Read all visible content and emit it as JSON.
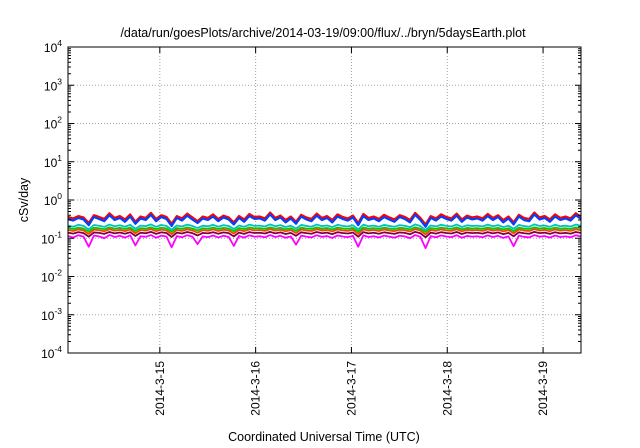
{
  "chart_data": {
    "type": "line",
    "title": "/data/run/goesPlots/archive/2014-03-19/09:00/flux/../bryn/5daysEarth.plot",
    "xlabel": "Coordinated Universal Time (UTC)",
    "ylabel": "cSv/day",
    "yscale": "log",
    "ylim": [
      0.0001,
      10000
    ],
    "yticks": [
      {
        "value": 0.0001,
        "base": "10",
        "exp": "-4"
      },
      {
        "value": 0.001,
        "base": "10",
        "exp": "-3"
      },
      {
        "value": 0.01,
        "base": "10",
        "exp": "-2"
      },
      {
        "value": 0.1,
        "base": "10",
        "exp": "-1"
      },
      {
        "value": 1,
        "base": "10",
        "exp": "0"
      },
      {
        "value": 10,
        "base": "10",
        "exp": "1"
      },
      {
        "value": 100,
        "base": "10",
        "exp": "2"
      },
      {
        "value": 1000,
        "base": "10",
        "exp": "3"
      },
      {
        "value": 10000,
        "base": "10",
        "exp": "4"
      }
    ],
    "xlim": [
      "2014-03-14T01:00",
      "2014-03-19T09:30"
    ],
    "xticks": [
      "2014-3-15",
      "2014-3-16",
      "2014-3-17",
      "2014-3-18",
      "2014-3-19"
    ],
    "grid": true,
    "series": [
      {
        "color": "#ff00ff",
        "values": [
          0.115,
          0.105,
          0.12,
          0.11,
          0.06,
          0.118,
          0.112,
          0.1,
          0.122,
          0.108,
          0.116,
          0.104,
          0.119,
          0.065,
          0.113,
          0.109,
          0.121,
          0.103,
          0.117,
          0.111,
          0.058,
          0.114,
          0.106,
          0.12,
          0.11,
          0.07,
          0.112,
          0.107,
          0.118,
          0.105,
          0.116,
          0.109,
          0.063,
          0.115,
          0.104,
          0.119,
          0.11,
          0.113,
          0.106,
          0.121,
          0.108,
          0.116,
          0.103,
          0.112,
          0.068,
          0.117,
          0.11,
          0.105,
          0.12,
          0.109,
          0.114,
          0.102,
          0.118,
          0.111,
          0.107,
          0.115,
          0.06,
          0.119,
          0.108,
          0.113,
          0.105,
          0.117,
          0.11,
          0.104,
          0.116,
          0.112,
          0.1,
          0.121,
          0.109,
          0.055,
          0.114,
          0.106,
          0.118,
          0.111,
          0.107,
          0.12,
          0.103,
          0.115,
          0.11,
          0.113,
          0.106,
          0.119,
          0.108,
          0.116,
          0.102,
          0.112,
          0.062,
          0.117,
          0.109,
          0.105,
          0.121,
          0.11,
          0.114,
          0.104,
          0.118,
          0.108,
          0.112,
          0.106,
          0.12,
          0.111
        ]
      },
      {
        "color": "#800040",
        "values": [
          0.14,
          0.132,
          0.145,
          0.136,
          0.11,
          0.142,
          0.138,
          0.13,
          0.146,
          0.134,
          0.141,
          0.131,
          0.144,
          0.115,
          0.139,
          0.135,
          0.147,
          0.13,
          0.143,
          0.137,
          0.108,
          0.14,
          0.133,
          0.146,
          0.136,
          0.118,
          0.138,
          0.134,
          0.144,
          0.131,
          0.142,
          0.136,
          0.112,
          0.14,
          0.13,
          0.145,
          0.137,
          0.139,
          0.133,
          0.147,
          0.134,
          0.142,
          0.129,
          0.138,
          0.116,
          0.143,
          0.136,
          0.131,
          0.146,
          0.135,
          0.14,
          0.128,
          0.144,
          0.137,
          0.133,
          0.141,
          0.11,
          0.145,
          0.134,
          0.139,
          0.131,
          0.143,
          0.136,
          0.13,
          0.142,
          0.138,
          0.127,
          0.147,
          0.135,
          0.106,
          0.14,
          0.132,
          0.144,
          0.137,
          0.133,
          0.146,
          0.129,
          0.141,
          0.136,
          0.139,
          0.132,
          0.145,
          0.134,
          0.142,
          0.128,
          0.138,
          0.113,
          0.143,
          0.135,
          0.131,
          0.147,
          0.136,
          0.14,
          0.13,
          0.144,
          0.134,
          0.138,
          0.132,
          0.146,
          0.137
        ]
      },
      {
        "color": "#ff4000",
        "values": [
          0.165,
          0.155,
          0.17,
          0.16,
          0.13,
          0.168,
          0.162,
          0.152,
          0.172,
          0.158,
          0.166,
          0.154,
          0.17,
          0.135,
          0.164,
          0.159,
          0.173,
          0.153,
          0.168,
          0.161,
          0.128,
          0.165,
          0.156,
          0.171,
          0.16,
          0.14,
          0.163,
          0.157,
          0.17,
          0.155,
          0.167,
          0.16,
          0.133,
          0.165,
          0.153,
          0.171,
          0.161,
          0.164,
          0.156,
          0.173,
          0.158,
          0.167,
          0.152,
          0.163,
          0.137,
          0.169,
          0.16,
          0.155,
          0.172,
          0.159,
          0.165,
          0.151,
          0.17,
          0.161,
          0.156,
          0.166,
          0.13,
          0.171,
          0.158,
          0.164,
          0.155,
          0.169,
          0.16,
          0.153,
          0.167,
          0.162,
          0.15,
          0.173,
          0.159,
          0.126,
          0.165,
          0.156,
          0.17,
          0.161,
          0.156,
          0.172,
          0.152,
          0.166,
          0.16,
          0.164,
          0.156,
          0.171,
          0.158,
          0.167,
          0.151,
          0.163,
          0.134,
          0.169,
          0.159,
          0.155,
          0.173,
          0.16,
          0.165,
          0.153,
          0.17,
          0.158,
          0.163,
          0.156,
          0.172,
          0.161
        ]
      },
      {
        "color": "#00cc00",
        "values": [
          0.185,
          0.175,
          0.19,
          0.18,
          0.15,
          0.188,
          0.182,
          0.172,
          0.192,
          0.178,
          0.186,
          0.174,
          0.19,
          0.155,
          0.184,
          0.179,
          0.193,
          0.173,
          0.188,
          0.181,
          0.148,
          0.185,
          0.176,
          0.191,
          0.18,
          0.16,
          0.183,
          0.177,
          0.19,
          0.175,
          0.187,
          0.18,
          0.153,
          0.185,
          0.173,
          0.191,
          0.181,
          0.184,
          0.176,
          0.193,
          0.178,
          0.187,
          0.172,
          0.183,
          0.157,
          0.189,
          0.18,
          0.175,
          0.192,
          0.179,
          0.185,
          0.171,
          0.19,
          0.181,
          0.176,
          0.186,
          0.15,
          0.191,
          0.178,
          0.184,
          0.175,
          0.189,
          0.18,
          0.173,
          0.187,
          0.182,
          0.17,
          0.193,
          0.179,
          0.146,
          0.185,
          0.176,
          0.19,
          0.181,
          0.176,
          0.192,
          0.172,
          0.186,
          0.18,
          0.184,
          0.176,
          0.191,
          0.178,
          0.187,
          0.171,
          0.183,
          0.154,
          0.189,
          0.179,
          0.175,
          0.193,
          0.18,
          0.185,
          0.173,
          0.19,
          0.178,
          0.183,
          0.176,
          0.192,
          0.181
        ]
      },
      {
        "color": "#00c0c0",
        "values": [
          0.215,
          0.2,
          0.225,
          0.21,
          0.17,
          0.222,
          0.212,
          0.198,
          0.228,
          0.206,
          0.218,
          0.2,
          0.225,
          0.178,
          0.214,
          0.207,
          0.23,
          0.199,
          0.222,
          0.211,
          0.168,
          0.216,
          0.203,
          0.227,
          0.21,
          0.185,
          0.213,
          0.205,
          0.225,
          0.2,
          0.22,
          0.21,
          0.175,
          0.216,
          0.199,
          0.227,
          0.211,
          0.214,
          0.203,
          0.23,
          0.206,
          0.22,
          0.197,
          0.213,
          0.18,
          0.223,
          0.21,
          0.2,
          0.228,
          0.208,
          0.216,
          0.196,
          0.225,
          0.211,
          0.203,
          0.218,
          0.172,
          0.227,
          0.206,
          0.214,
          0.2,
          0.223,
          0.21,
          0.199,
          0.22,
          0.212,
          0.195,
          0.23,
          0.208,
          0.165,
          0.216,
          0.203,
          0.225,
          0.211,
          0.203,
          0.228,
          0.197,
          0.218,
          0.21,
          0.214,
          0.203,
          0.227,
          0.206,
          0.22,
          0.196,
          0.213,
          0.177,
          0.223,
          0.208,
          0.2,
          0.23,
          0.21,
          0.216,
          0.199,
          0.225,
          0.206,
          0.213,
          0.203,
          0.228,
          0.211
        ]
      },
      {
        "color": "#ff0000",
        "values": [
          0.36,
          0.33,
          0.38,
          0.35,
          0.25,
          0.4,
          0.36,
          0.32,
          0.45,
          0.34,
          0.38,
          0.31,
          0.42,
          0.27,
          0.37,
          0.34,
          0.46,
          0.32,
          0.4,
          0.36,
          0.24,
          0.38,
          0.33,
          0.44,
          0.35,
          0.28,
          0.37,
          0.34,
          0.42,
          0.32,
          0.39,
          0.35,
          0.26,
          0.38,
          0.31,
          0.43,
          0.36,
          0.37,
          0.33,
          0.47,
          0.34,
          0.39,
          0.3,
          0.37,
          0.27,
          0.41,
          0.35,
          0.32,
          0.44,
          0.34,
          0.38,
          0.3,
          0.42,
          0.36,
          0.33,
          0.39,
          0.25,
          0.43,
          0.34,
          0.37,
          0.32,
          0.41,
          0.35,
          0.31,
          0.4,
          0.36,
          0.3,
          0.46,
          0.34,
          0.23,
          0.38,
          0.33,
          0.42,
          0.36,
          0.33,
          0.44,
          0.31,
          0.39,
          0.35,
          0.37,
          0.33,
          0.43,
          0.34,
          0.4,
          0.3,
          0.37,
          0.26,
          0.41,
          0.34,
          0.32,
          0.47,
          0.35,
          0.38,
          0.31,
          0.42,
          0.34,
          0.37,
          0.33,
          0.45,
          0.36
        ]
      },
      {
        "color": "#0040ff",
        "values": [
          0.32,
          0.29,
          0.34,
          0.31,
          0.22,
          0.36,
          0.32,
          0.28,
          0.4,
          0.3,
          0.34,
          0.27,
          0.37,
          0.24,
          0.33,
          0.3,
          0.41,
          0.28,
          0.36,
          0.32,
          0.21,
          0.34,
          0.29,
          0.39,
          0.31,
          0.25,
          0.33,
          0.3,
          0.37,
          0.28,
          0.35,
          0.31,
          0.23,
          0.34,
          0.27,
          0.38,
          0.32,
          0.33,
          0.29,
          0.42,
          0.3,
          0.35,
          0.26,
          0.33,
          0.24,
          0.37,
          0.31,
          0.28,
          0.39,
          0.3,
          0.34,
          0.26,
          0.37,
          0.32,
          0.29,
          0.35,
          0.22,
          0.38,
          0.3,
          0.33,
          0.28,
          0.36,
          0.31,
          0.27,
          0.36,
          0.32,
          0.26,
          0.41,
          0.3,
          0.2,
          0.34,
          0.29,
          0.37,
          0.32,
          0.29,
          0.39,
          0.27,
          0.35,
          0.31,
          0.33,
          0.29,
          0.38,
          0.3,
          0.36,
          0.26,
          0.33,
          0.23,
          0.37,
          0.3,
          0.28,
          0.42,
          0.31,
          0.34,
          0.27,
          0.37,
          0.3,
          0.33,
          0.29,
          0.4,
          0.32
        ]
      }
    ]
  }
}
